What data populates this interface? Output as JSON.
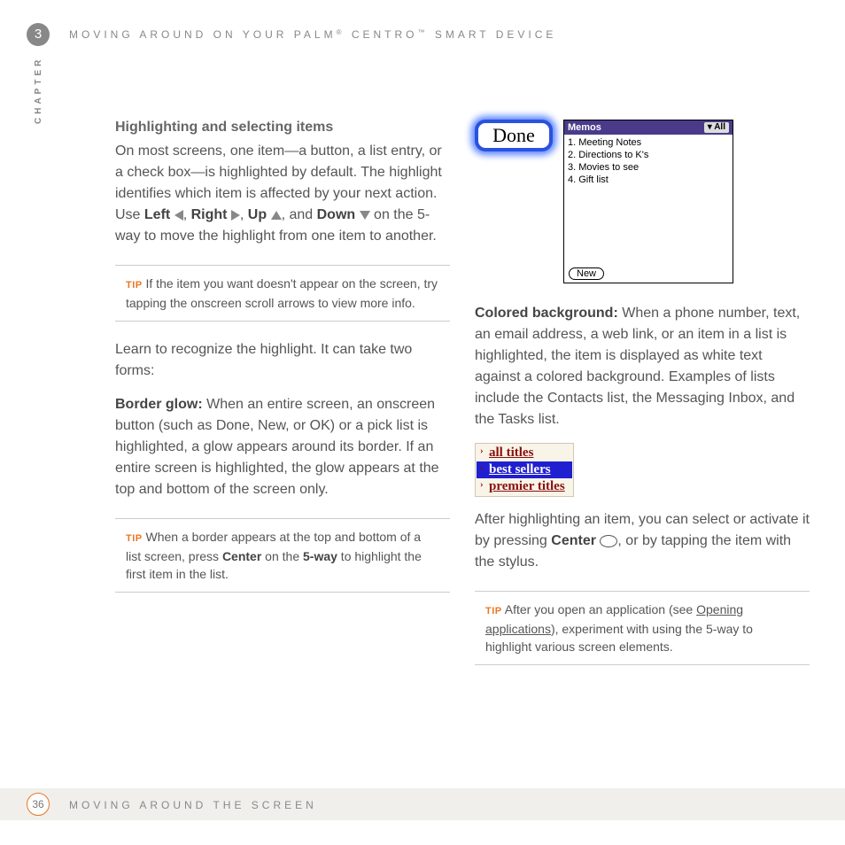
{
  "chapter_number": "3",
  "header_title": "MOVING AROUND ON YOUR PALM® CENTRO™ SMART DEVICE",
  "chapter_side_label": "CHAPTER",
  "left": {
    "heading": "Highlighting and selecting items",
    "p1_part1": "On most screens, one item—a button, a list entry, or a check box—is highlighted by default. The highlight identifies which item is affected by your next action. Use ",
    "left_label": "Left",
    "right_label": "Right",
    "up_label": "Up",
    "down_label": "Down",
    "p1_part2": " on the 5-way to move the highlight from one item to another.",
    "tip1_label": "TIP",
    "tip1_text": " If the item you want doesn't appear on the screen, try tapping the onscreen scroll arrows to view more info.",
    "p2": "Learn to recognize the highlight. It can take two forms:",
    "border_glow_label": "Border glow:",
    "border_glow_text": " When an entire screen, an onscreen button (such as Done, New, or OK) or a pick list is highlighted, a glow appears around its border. If an entire screen is highlighted, the glow appears at the top and bottom of the screen only.",
    "tip2_label": "TIP",
    "tip2_text_before": " When a border appears at the top and bottom of a list screen, press ",
    "tip2_center": "Center",
    "tip2_text_mid": " on the ",
    "tip2_fiveway": "5-way",
    "tip2_text_after": " to highlight the first item in the list."
  },
  "right": {
    "done_label": "Done",
    "memos": {
      "title": "Memos",
      "all": "▾ All",
      "items": [
        "1. Meeting Notes",
        "2. Directions to K's",
        "3. Movies to see",
        "4. Gift list"
      ],
      "new_btn": "New"
    },
    "colored_bg_label": "Colored background:",
    "colored_bg_text": " When a phone number, text, an email address, a web link, or an item in a list is highlighted, the item is displayed as white text against a colored background. Examples of lists include the Contacts list, the Messaging Inbox, and the Tasks list.",
    "titles": [
      "all titles",
      "best sellers",
      "premier titles"
    ],
    "after_highlight_before": "After highlighting an item, you can select or activate it by pressing ",
    "center_label": "Center",
    "after_highlight_after": ", or by tapping the item with the stylus.",
    "tip3_label": "TIP",
    "tip3_before": " After you open an application (see ",
    "tip3_link": "Opening applications",
    "tip3_after": "), experiment with using the 5-way to highlight various screen elements."
  },
  "footer": {
    "page": "36",
    "text": "MOVING AROUND THE SCREEN"
  }
}
